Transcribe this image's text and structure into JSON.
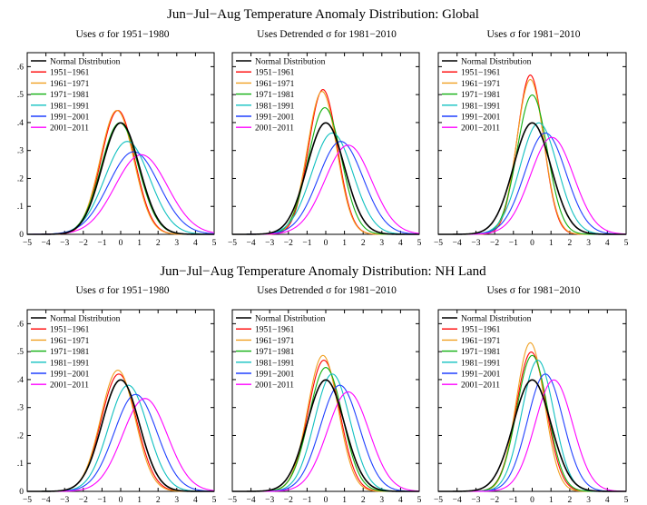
{
  "chart_data": [
    {
      "type": "line",
      "title": "Jun−Jul−Aug Temperature Anomaly Distribution: Global",
      "xlim": [
        -5,
        5
      ],
      "ylim": [
        0,
        0.65
      ],
      "x_ticks": [
        "−5",
        "−4",
        "−3",
        "−2",
        "−1",
        "0",
        "1",
        "2",
        "3",
        "4",
        "5"
      ],
      "y_ticks": [
        "0",
        ".1",
        ".2",
        ".3",
        ".4",
        ".5",
        ".6"
      ],
      "legend_position": "top-left",
      "colors": [
        "#000000",
        "#ff0000",
        "#f0a020",
        "#10b010",
        "#10c0c0",
        "#2040ff",
        "#ff00ff"
      ],
      "panels": [
        {
          "subtitle": "Uses σ for 1951−1980",
          "series": [
            {
              "name": "Normal Distribution",
              "mu": 0,
              "sigma": 1
            },
            {
              "name": "1951−1961",
              "mu": -0.15,
              "sigma": 0.9
            },
            {
              "name": "1961−1971",
              "mu": -0.2,
              "sigma": 0.9
            },
            {
              "name": "1971−1981",
              "mu": -0.05,
              "sigma": 1.0
            },
            {
              "name": "1981−1991",
              "mu": 0.35,
              "sigma": 1.2
            },
            {
              "name": "1991−2001",
              "mu": 0.7,
              "sigma": 1.35
            },
            {
              "name": "2001−2011",
              "mu": 1.1,
              "sigma": 1.4
            }
          ]
        },
        {
          "subtitle": "Uses Detrended σ for 1981−2010",
          "series": [
            {
              "name": "Normal Distribution",
              "mu": 0,
              "sigma": 1
            },
            {
              "name": "1951−1961",
              "mu": -0.15,
              "sigma": 0.77
            },
            {
              "name": "1961−1971",
              "mu": -0.2,
              "sigma": 0.78
            },
            {
              "name": "1971−1981",
              "mu": -0.05,
              "sigma": 0.88
            },
            {
              "name": "1981−1991",
              "mu": 0.35,
              "sigma": 1.1
            },
            {
              "name": "1991−2001",
              "mu": 0.8,
              "sigma": 1.2
            },
            {
              "name": "2001−2011",
              "mu": 1.2,
              "sigma": 1.25
            }
          ]
        },
        {
          "subtitle": "Uses σ for 1981−2010",
          "series": [
            {
              "name": "Normal Distribution",
              "mu": 0,
              "sigma": 1
            },
            {
              "name": "1951−1961",
              "mu": -0.1,
              "sigma": 0.7
            },
            {
              "name": "1961−1971",
              "mu": -0.1,
              "sigma": 0.72
            },
            {
              "name": "1971−1981",
              "mu": 0.0,
              "sigma": 0.8
            },
            {
              "name": "1981−1991",
              "mu": 0.35,
              "sigma": 1.0
            },
            {
              "name": "1991−2001",
              "mu": 0.7,
              "sigma": 1.1
            },
            {
              "name": "2001−2011",
              "mu": 1.05,
              "sigma": 1.15
            }
          ]
        }
      ]
    },
    {
      "type": "line",
      "title": "Jun−Jul−Aug Temperature Anomaly Distribution: NH Land",
      "xlim": [
        -5,
        5
      ],
      "ylim": [
        0,
        0.65
      ],
      "x_ticks": [
        "−5",
        "−4",
        "−3",
        "−2",
        "−1",
        "0",
        "1",
        "2",
        "3",
        "4",
        "5"
      ],
      "y_ticks": [
        "0",
        ".1",
        ".2",
        ".3",
        ".4",
        ".5",
        ".6"
      ],
      "legend_position": "top-left",
      "colors": [
        "#000000",
        "#ff0000",
        "#f0a020",
        "#10b010",
        "#10c0c0",
        "#2040ff",
        "#ff00ff"
      ],
      "panels": [
        {
          "subtitle": "Uses σ for 1951−1980",
          "series": [
            {
              "name": "Normal Distribution",
              "mu": 0,
              "sigma": 1
            },
            {
              "name": "1951−1961",
              "mu": -0.1,
              "sigma": 0.95
            },
            {
              "name": "1961−1971",
              "mu": -0.15,
              "sigma": 0.92
            },
            {
              "name": "1971−1981",
              "mu": 0.0,
              "sigma": 1.0
            },
            {
              "name": "1981−1991",
              "mu": 0.4,
              "sigma": 1.05
            },
            {
              "name": "1991−2001",
              "mu": 0.8,
              "sigma": 1.15
            },
            {
              "name": "2001−2011",
              "mu": 1.3,
              "sigma": 1.2
            }
          ]
        },
        {
          "subtitle": "Uses Detrended σ for 1981−2010",
          "series": [
            {
              "name": "Normal Distribution",
              "mu": 0,
              "sigma": 1
            },
            {
              "name": "1951−1961",
              "mu": -0.1,
              "sigma": 0.85
            },
            {
              "name": "1961−1971",
              "mu": -0.15,
              "sigma": 0.82
            },
            {
              "name": "1971−1981",
              "mu": 0.0,
              "sigma": 0.9
            },
            {
              "name": "1981−1991",
              "mu": 0.35,
              "sigma": 0.95
            },
            {
              "name": "1991−2001",
              "mu": 0.75,
              "sigma": 1.05
            },
            {
              "name": "2001−2011",
              "mu": 1.2,
              "sigma": 1.12
            }
          ]
        },
        {
          "subtitle": "Uses σ for 1981−2010",
          "series": [
            {
              "name": "Normal Distribution",
              "mu": 0,
              "sigma": 1
            },
            {
              "name": "1951−1961",
              "mu": -0.05,
              "sigma": 0.8
            },
            {
              "name": "1961−1971",
              "mu": -0.1,
              "sigma": 0.75
            },
            {
              "name": "1971−1981",
              "mu": 0.0,
              "sigma": 0.82
            },
            {
              "name": "1981−1991",
              "mu": 0.3,
              "sigma": 0.85
            },
            {
              "name": "1991−2001",
              "mu": 0.7,
              "sigma": 0.95
            },
            {
              "name": "2001−2011",
              "mu": 1.15,
              "sigma": 1.0
            }
          ]
        }
      ]
    }
  ]
}
